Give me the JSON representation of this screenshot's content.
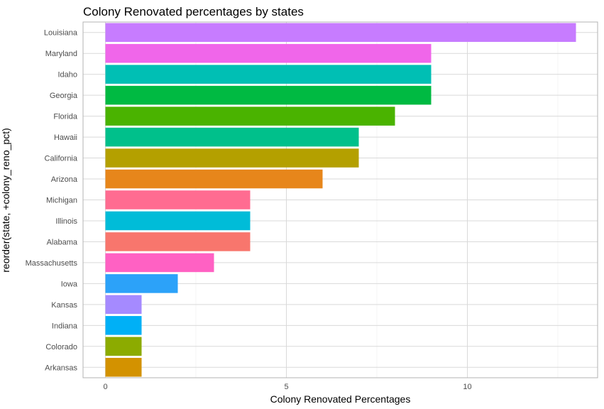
{
  "chart_data": {
    "type": "bar",
    "orientation": "horizontal",
    "title": "Colony Renovated percentages by states",
    "xlabel": "Colony Renovated Percentages",
    "ylabel": "reorder(state, +colony_reno_pct)",
    "xlim": [
      0,
      13
    ],
    "x_ticks": [
      0,
      5,
      10
    ],
    "grid": true,
    "legend": "none",
    "categories": [
      "Louisiana",
      "Maryland",
      "Idaho",
      "Georgia",
      "Florida",
      "Hawaii",
      "California",
      "Arizona",
      "Michigan",
      "Illinois",
      "Alabama",
      "Massachusetts",
      "Iowa",
      "Kansas",
      "Indiana",
      "Colorado",
      "Arkansas"
    ],
    "values": [
      13,
      9,
      9,
      9,
      8,
      7,
      7,
      6,
      4,
      4,
      4,
      3,
      2,
      1,
      1,
      1,
      1
    ],
    "colors": [
      "#C77CFF",
      "#F066EA",
      "#00BFB4",
      "#00BA42",
      "#4AB300",
      "#00C08B",
      "#B4A000",
      "#E7861B",
      "#FF6C91",
      "#00BCD8",
      "#F8766D",
      "#FF61C3",
      "#2CA2F9",
      "#A58AFF",
      "#00B0F6",
      "#8CAB00",
      "#D39200"
    ]
  }
}
